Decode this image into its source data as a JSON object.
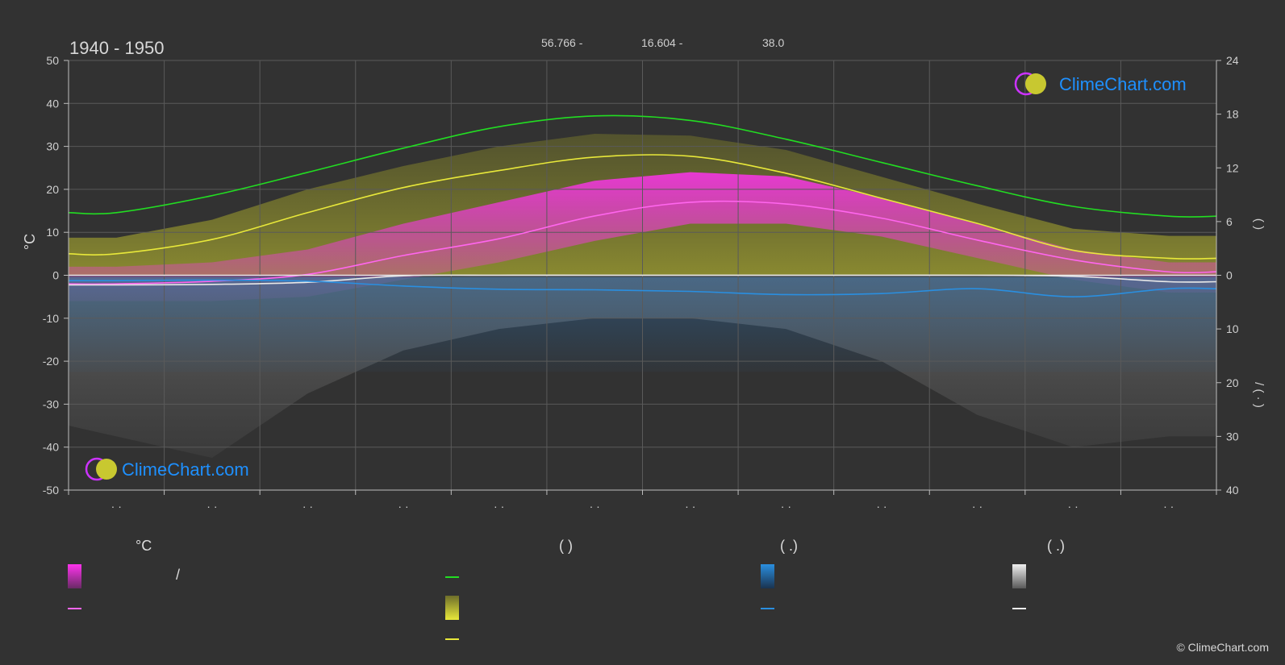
{
  "header": {
    "period": "1940 - 1950",
    "lat": "56.766 -",
    "lon": "16.604 -",
    "elev": "38.0"
  },
  "brand": {
    "name": "ClimeChart.com",
    "copyright": "© ClimeChart.com"
  },
  "colors": {
    "background": "#323232",
    "daylight": "#22dd22",
    "sunshine": "#e8e83a",
    "temp_mean": "#ff66ee",
    "precip": "#2a8fe0",
    "snow": "#e8e8e8",
    "brand_blue": "#1e90ff"
  },
  "chart_data": {
    "type": "line",
    "months": 12,
    "x": [
      0.5,
      1.5,
      2.5,
      3.5,
      4.5,
      5.5,
      6.5,
      7.5,
      8.5,
      9.5,
      10.5,
      11.5
    ],
    "left_axis": {
      "label": "°C",
      "ylim": [
        -50,
        50
      ],
      "ticks": [
        "50",
        "40",
        "30",
        "20",
        "10",
        "0",
        "-10",
        "-20",
        "-30",
        "-40",
        "-50"
      ]
    },
    "right_axis_top": {
      "ylim": [
        0,
        24
      ],
      "ticks": [
        "24",
        "18",
        "12",
        "6",
        "0"
      ],
      "label_glyphs": "(  )"
    },
    "right_axis_bottom": {
      "ylim": [
        0,
        40
      ],
      "ticks": [
        "10",
        "20",
        "30",
        "40"
      ],
      "label_glyphs": "/ (  ·  )"
    },
    "x_tick_labels": [
      "· ·",
      "· ·",
      "· ·",
      "· ·",
      "· ·",
      "· ·",
      "· ·",
      "· ·",
      "· ·",
      "· ·",
      "· ·",
      "· ·"
    ],
    "series": [
      {
        "key": "daylight",
        "axis": "hours",
        "values": [
          7.0,
          8.9,
          11.5,
          14.2,
          16.6,
          17.8,
          17.3,
          15.2,
          12.6,
          10.0,
          7.7,
          6.6
        ]
      },
      {
        "key": "sunshine",
        "axis": "hours",
        "values": [
          2.4,
          4.0,
          7.0,
          9.8,
          11.7,
          13.2,
          13.3,
          11.4,
          8.6,
          5.8,
          2.8,
          1.9
        ]
      },
      {
        "key": "temp_mean",
        "axis": "celsius",
        "values": [
          -2.0,
          -1.4,
          0.2,
          4.6,
          8.5,
          13.8,
          17.0,
          16.6,
          13.3,
          8.2,
          3.6,
          0.8
        ]
      },
      {
        "key": "snow",
        "axis": "precip",
        "values": [
          1.8,
          1.7,
          1.3,
          0.1,
          0.0,
          0.0,
          0.0,
          0.0,
          0.0,
          0.0,
          0.2,
          1.2
        ]
      },
      {
        "key": "precip",
        "axis": "precip",
        "values": [
          1.0,
          0.9,
          1.1,
          2.0,
          2.6,
          2.7,
          3.0,
          3.6,
          3.4,
          2.5,
          4.0,
          2.5
        ]
      }
    ],
    "daily_bands": {
      "temp_min": [
        -6,
        -6,
        -5,
        -1,
        3,
        8,
        12,
        12,
        9,
        4,
        -1,
        -4
      ],
      "temp_max": [
        2,
        3,
        6,
        12,
        17,
        22,
        24,
        23,
        18,
        12,
        6,
        3
      ],
      "sunshine_max_hours": [
        4.2,
        6.2,
        9.6,
        12.2,
        14.4,
        15.8,
        15.6,
        14.0,
        11.0,
        8.0,
        5.2,
        4.4
      ]
    }
  },
  "legend": {
    "col1": {
      "title": "°C",
      "row1_text": "/",
      "row2_text": ""
    },
    "col2": {
      "title": "(          )",
      "row1_text": "",
      "row2_text": "",
      "row3_text": ""
    },
    "col3": {
      "title": "(   .)",
      "row1_text": "",
      "row2_text": ""
    },
    "col4": {
      "title": "(   .)",
      "row1_text": "",
      "row2_text": ""
    }
  }
}
